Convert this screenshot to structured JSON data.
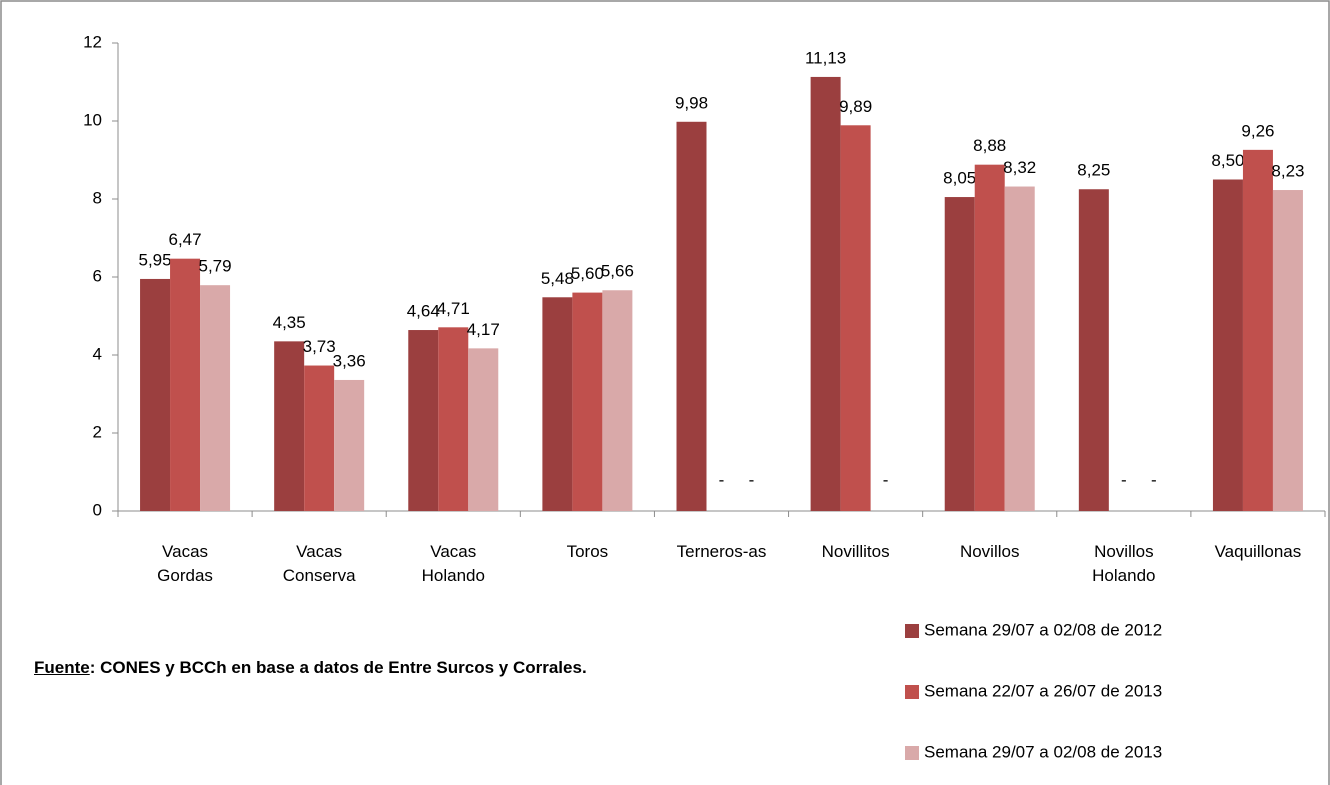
{
  "chart_data": {
    "type": "bar",
    "categories": [
      "Vacas Gordas",
      "Vacas Conserva",
      "Vacas Holando",
      "Toros",
      "Terneros-as",
      "Novillitos",
      "Novillos",
      "Novillos Holando",
      "Vaquillonas"
    ],
    "series": [
      {
        "name": "Semana 29/07 a 02/08 de 2012",
        "color": "#9b3f3f",
        "values": [
          5.95,
          4.35,
          4.64,
          5.48,
          9.98,
          11.13,
          8.05,
          8.25,
          8.5
        ],
        "value_labels": [
          "5,95",
          "4,35",
          "4,64",
          "5,48",
          "9,98",
          "11,13",
          "8,05",
          "8,25",
          "8,50"
        ]
      },
      {
        "name": "Semana 22/07 a 26/07 de 2013",
        "color": "#c0504d",
        "values": [
          6.47,
          3.73,
          4.71,
          5.6,
          null,
          9.89,
          8.88,
          null,
          9.26
        ],
        "value_labels": [
          "6,47",
          "3,73",
          "4,71",
          "5,60",
          "-",
          "9,89",
          "8,88",
          "-",
          "9,26"
        ]
      },
      {
        "name": "Semana 29/07 a 02/08 de 2013",
        "color": "#d9a9a9",
        "values": [
          5.79,
          3.36,
          4.17,
          5.66,
          null,
          null,
          8.32,
          null,
          8.23
        ],
        "value_labels": [
          "5,79",
          "3,36",
          "4,17",
          "5,66",
          "-",
          "-",
          "8,32",
          "-",
          "8,23"
        ]
      }
    ],
    "ylim": [
      0,
      12
    ],
    "yticks": [
      0,
      2,
      4,
      6,
      8,
      10,
      12
    ],
    "grid": false,
    "legend": "bottom-right",
    "source_label": "Fuente",
    "source_text": ": CONES y BCCh en base a datos de Entre Surcos y Corrales."
  }
}
